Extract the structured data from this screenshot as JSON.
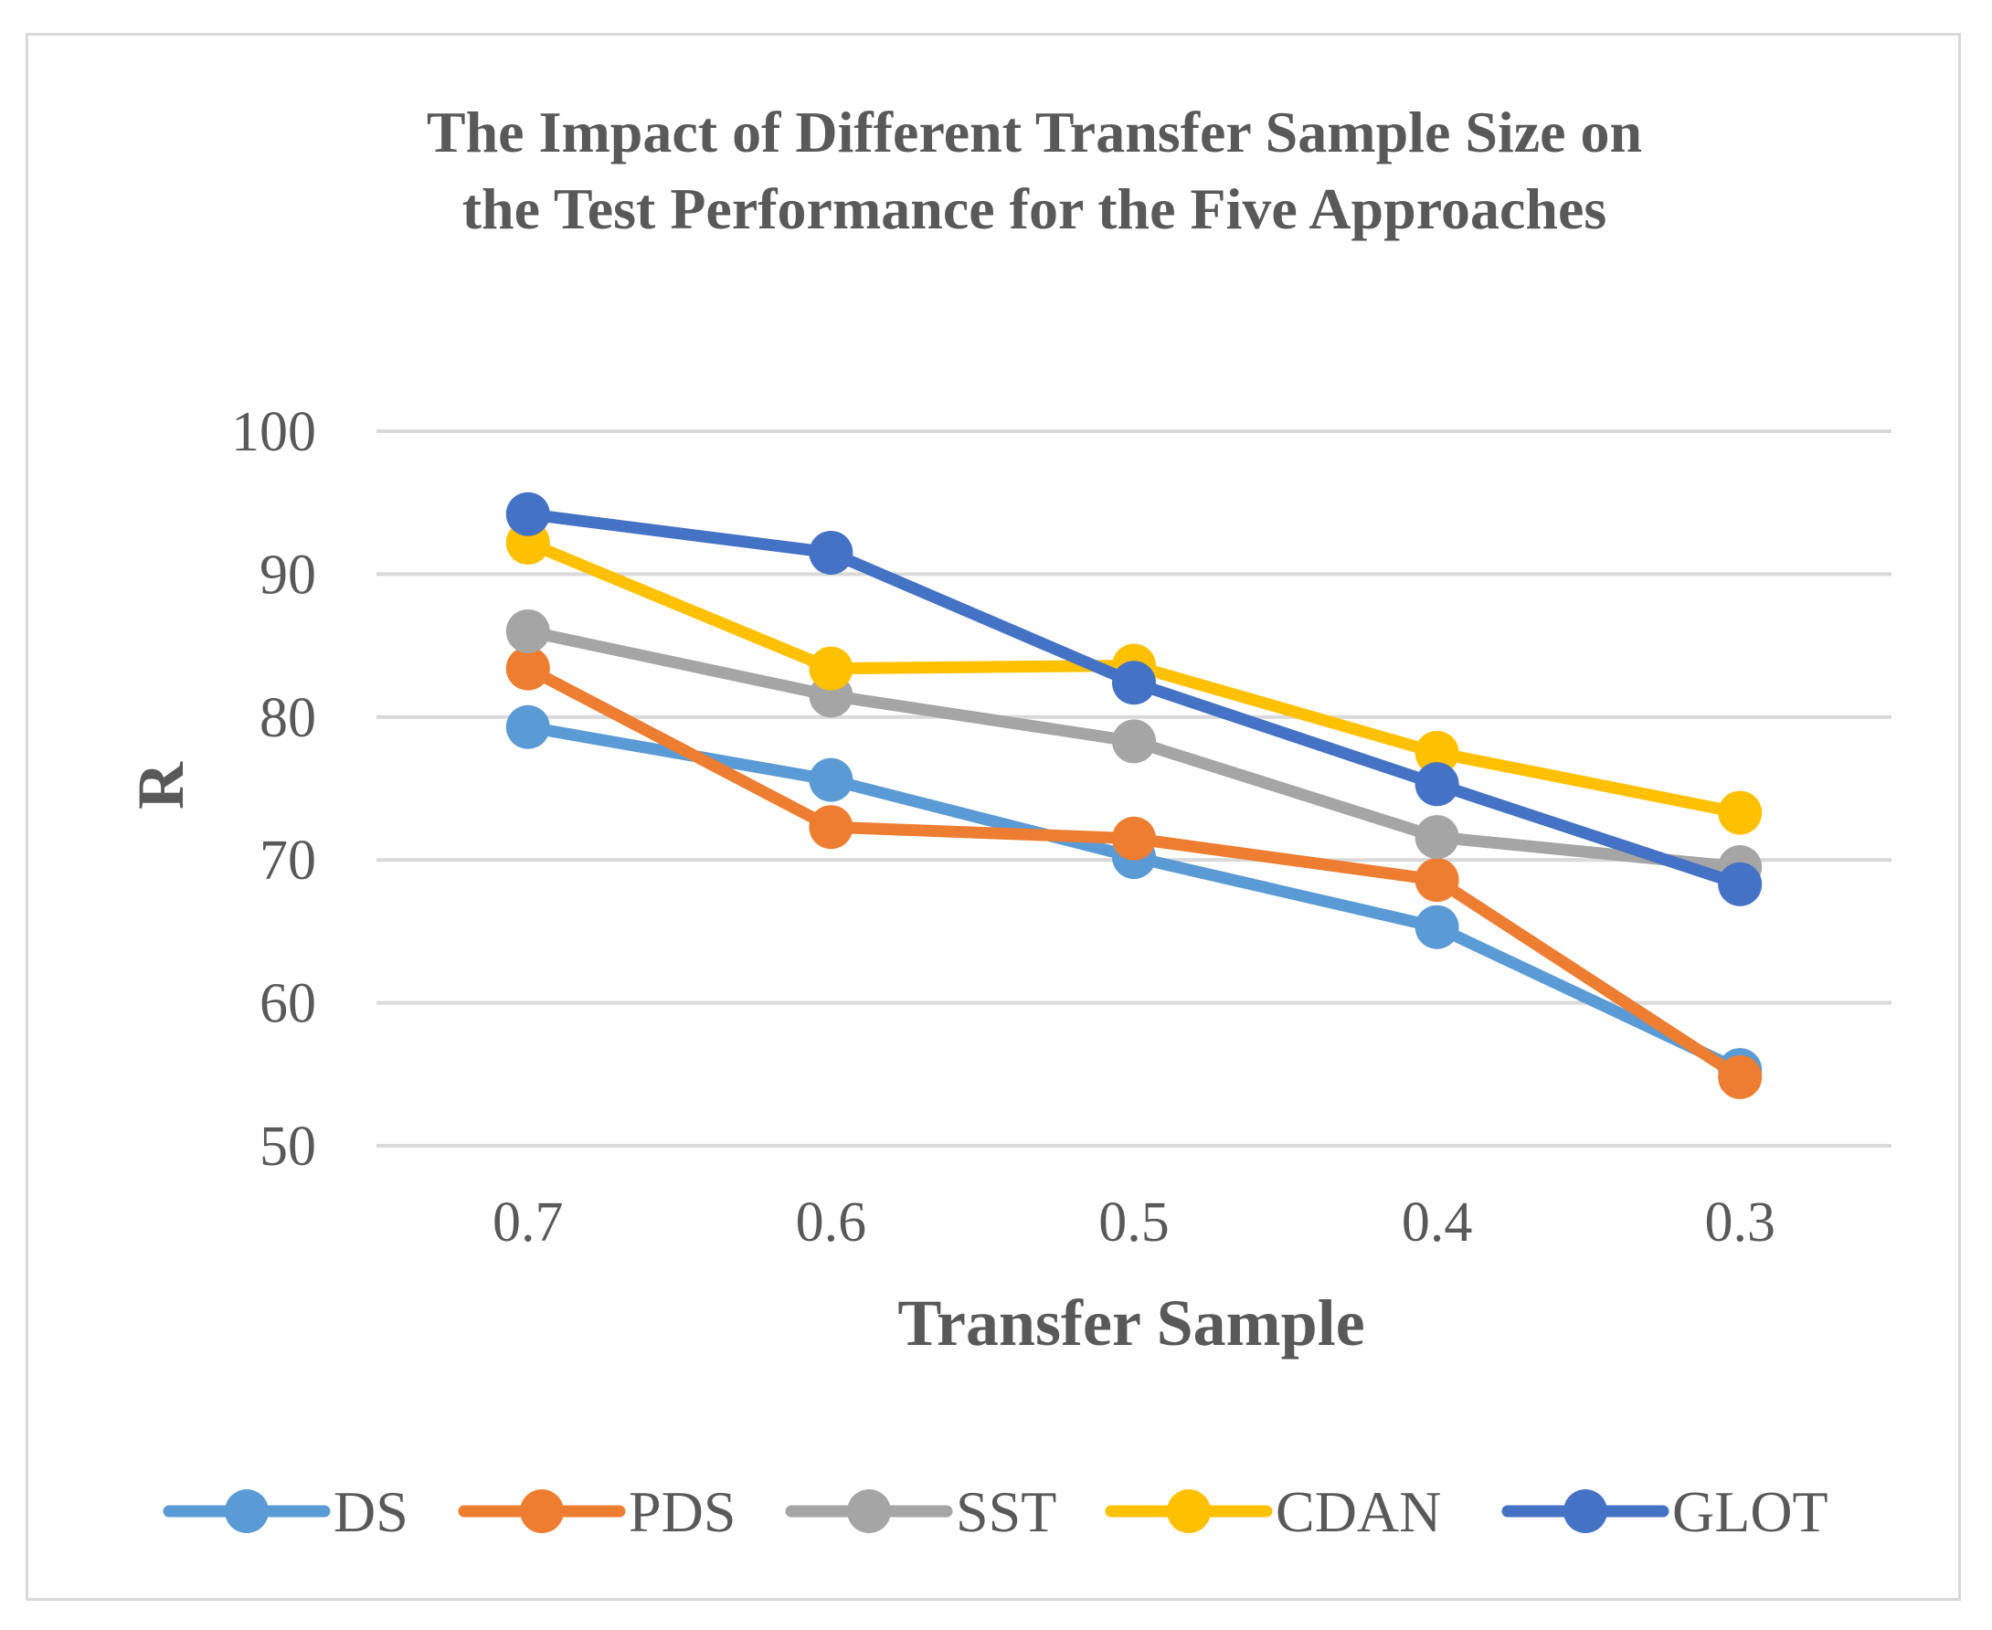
{
  "chart_data": {
    "type": "line",
    "title_lines": [
      "The Impact of Different Transfer Sample Size on",
      "the Test Performance for the Five Approaches"
    ],
    "xlabel": "Transfer Sample",
    "ylabel": "R",
    "categories": [
      "0.7",
      "0.6",
      "0.5",
      "0.4",
      "0.3"
    ],
    "ylim": [
      50,
      100
    ],
    "yticks": [
      50,
      60,
      70,
      80,
      90,
      100
    ],
    "grid": true,
    "legend_position": "bottom",
    "series": [
      {
        "name": "DS",
        "color": "#5b9bd5",
        "values": [
          79.3,
          75.6,
          70.2,
          65.3,
          55.3
        ]
      },
      {
        "name": "PDS",
        "color": "#ed7d31",
        "values": [
          83.4,
          72.3,
          71.5,
          68.6,
          54.8
        ]
      },
      {
        "name": "SST",
        "color": "#a5a5a5",
        "values": [
          86.0,
          81.5,
          78.3,
          71.6,
          69.5
        ]
      },
      {
        "name": "CDAN",
        "color": "#ffc000",
        "values": [
          92.2,
          83.4,
          83.6,
          77.5,
          73.3
        ]
      },
      {
        "name": "GLOT",
        "color": "#4472c4",
        "values": [
          94.2,
          91.5,
          82.4,
          75.3,
          68.3
        ]
      }
    ]
  }
}
